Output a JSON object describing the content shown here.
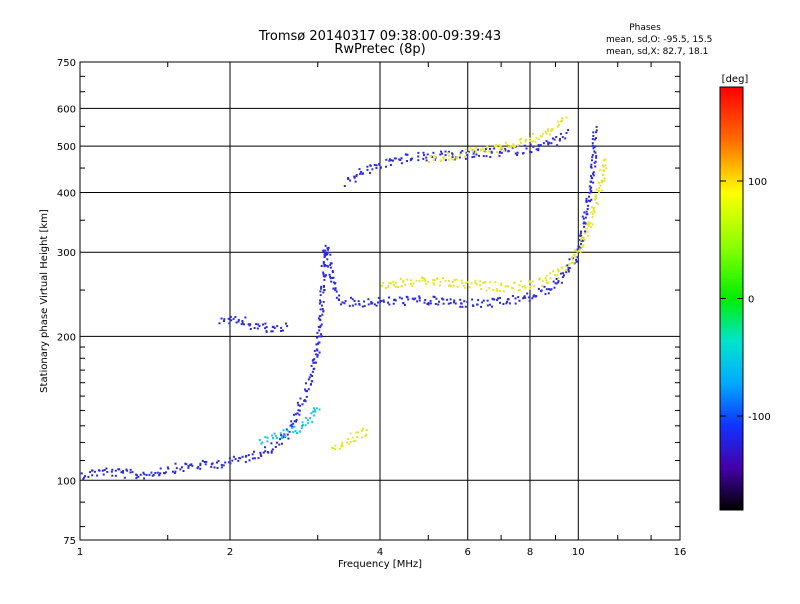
{
  "chart_data": {
    "type": "scatter",
    "title": "Tromsø 20140317 09:38:00-09:39:43",
    "subtitle": "RwPretec (8p)",
    "xlabel": "Frequency [MHz]",
    "ylabel": "Stationary phase Virtual Height [km]",
    "x_scale": "log",
    "y_scale": "log",
    "xlim": [
      1,
      16
    ],
    "ylim": [
      75,
      750
    ],
    "x_ticks": [
      1,
      2,
      4,
      6,
      8,
      10,
      16
    ],
    "y_ticks": [
      75,
      100,
      200,
      300,
      400,
      500,
      600,
      750
    ],
    "grid": true,
    "phase_info": {
      "title": "Phases",
      "line1": "mean, sd,O: -95.5, 15.5",
      "line2": "mean, sd,X:  82.7, 18.1"
    },
    "colorbar": {
      "label": "[deg]",
      "range": [
        -180,
        180
      ],
      "ticks": [
        100,
        0,
        -100
      ]
    },
    "series": [
      {
        "name": "O",
        "phase_deg": -95
      },
      {
        "name": "X",
        "phase_deg": 85
      }
    ],
    "traces": [
      {
        "color": "#2a2ae0",
        "points": [
          [
            1.0,
            103
          ],
          [
            1.1,
            105
          ],
          [
            1.2,
            104
          ],
          [
            1.3,
            103
          ],
          [
            1.4,
            104
          ],
          [
            1.5,
            106
          ],
          [
            1.6,
            107
          ],
          [
            1.7,
            108
          ],
          [
            1.8,
            108
          ],
          [
            1.9,
            109
          ],
          [
            2.0,
            110
          ],
          [
            2.2,
            113
          ],
          [
            2.4,
            117
          ],
          [
            2.6,
            125
          ],
          [
            2.8,
            150
          ],
          [
            2.9,
            165
          ],
          [
            3.0,
            190
          ],
          [
            3.05,
            250
          ],
          [
            3.1,
            310
          ],
          [
            3.15,
            290
          ],
          [
            3.2,
            260
          ],
          [
            3.3,
            240
          ],
          [
            3.5,
            236
          ],
          [
            3.8,
            237
          ],
          [
            4.2,
            238
          ],
          [
            4.6,
            239
          ],
          [
            5.2,
            238
          ],
          [
            5.8,
            236
          ],
          [
            6.4,
            235
          ],
          [
            7.0,
            237
          ],
          [
            7.6,
            240
          ],
          [
            8.2,
            245
          ],
          [
            8.8,
            255
          ],
          [
            9.4,
            270
          ],
          [
            9.9,
            300
          ],
          [
            10.2,
            340
          ],
          [
            10.5,
            400
          ],
          [
            10.7,
            470
          ],
          [
            10.8,
            550
          ]
        ]
      },
      {
        "color": "#2a2ae0",
        "points": [
          [
            3.4,
            420
          ],
          [
            3.6,
            440
          ],
          [
            3.8,
            450
          ],
          [
            4.0,
            460
          ],
          [
            4.3,
            470
          ],
          [
            4.6,
            475
          ],
          [
            5.0,
            478
          ],
          [
            5.5,
            480
          ],
          [
            6.0,
            482
          ],
          [
            6.5,
            485
          ],
          [
            7.0,
            488
          ],
          [
            7.5,
            492
          ],
          [
            8.0,
            498
          ],
          [
            8.5,
            505
          ],
          [
            9.0,
            515
          ],
          [
            9.5,
            535
          ]
        ]
      },
      {
        "color": "#2a2ae0",
        "points": [
          [
            1.9,
            215
          ],
          [
            2.0,
            216
          ],
          [
            2.1,
            217
          ],
          [
            2.2,
            212
          ],
          [
            2.4,
            208
          ],
          [
            2.6,
            210
          ]
        ]
      },
      {
        "color": "#e6e628",
        "points": [
          [
            4.0,
            258
          ],
          [
            4.5,
            260
          ],
          [
            5.0,
            262
          ],
          [
            5.5,
            260
          ],
          [
            6.0,
            258
          ],
          [
            6.5,
            256
          ],
          [
            7.0,
            255
          ],
          [
            7.5,
            256
          ],
          [
            8.0,
            258
          ],
          [
            8.5,
            262
          ],
          [
            9.0,
            270
          ],
          [
            9.5,
            285
          ],
          [
            10.0,
            305
          ],
          [
            10.5,
            345
          ],
          [
            10.8,
            380
          ],
          [
            11.1,
            430
          ],
          [
            11.3,
            480
          ]
        ]
      },
      {
        "color": "#e6e628",
        "points": [
          [
            5.0,
            470
          ],
          [
            5.5,
            478
          ],
          [
            6.0,
            486
          ],
          [
            6.5,
            495
          ],
          [
            7.0,
            500
          ],
          [
            7.5,
            510
          ],
          [
            8.0,
            520
          ],
          [
            8.5,
            535
          ],
          [
            9.0,
            550
          ],
          [
            9.4,
            570
          ]
        ]
      },
      {
        "color": "#18c8e0",
        "points": [
          [
            2.3,
            120
          ],
          [
            2.5,
            125
          ],
          [
            2.7,
            128
          ],
          [
            2.9,
            135
          ],
          [
            3.0,
            145
          ]
        ]
      },
      {
        "color": "#e6e628",
        "points": [
          [
            3.2,
            118
          ],
          [
            3.4,
            121
          ],
          [
            3.6,
            125
          ],
          [
            3.8,
            128
          ]
        ]
      }
    ]
  }
}
